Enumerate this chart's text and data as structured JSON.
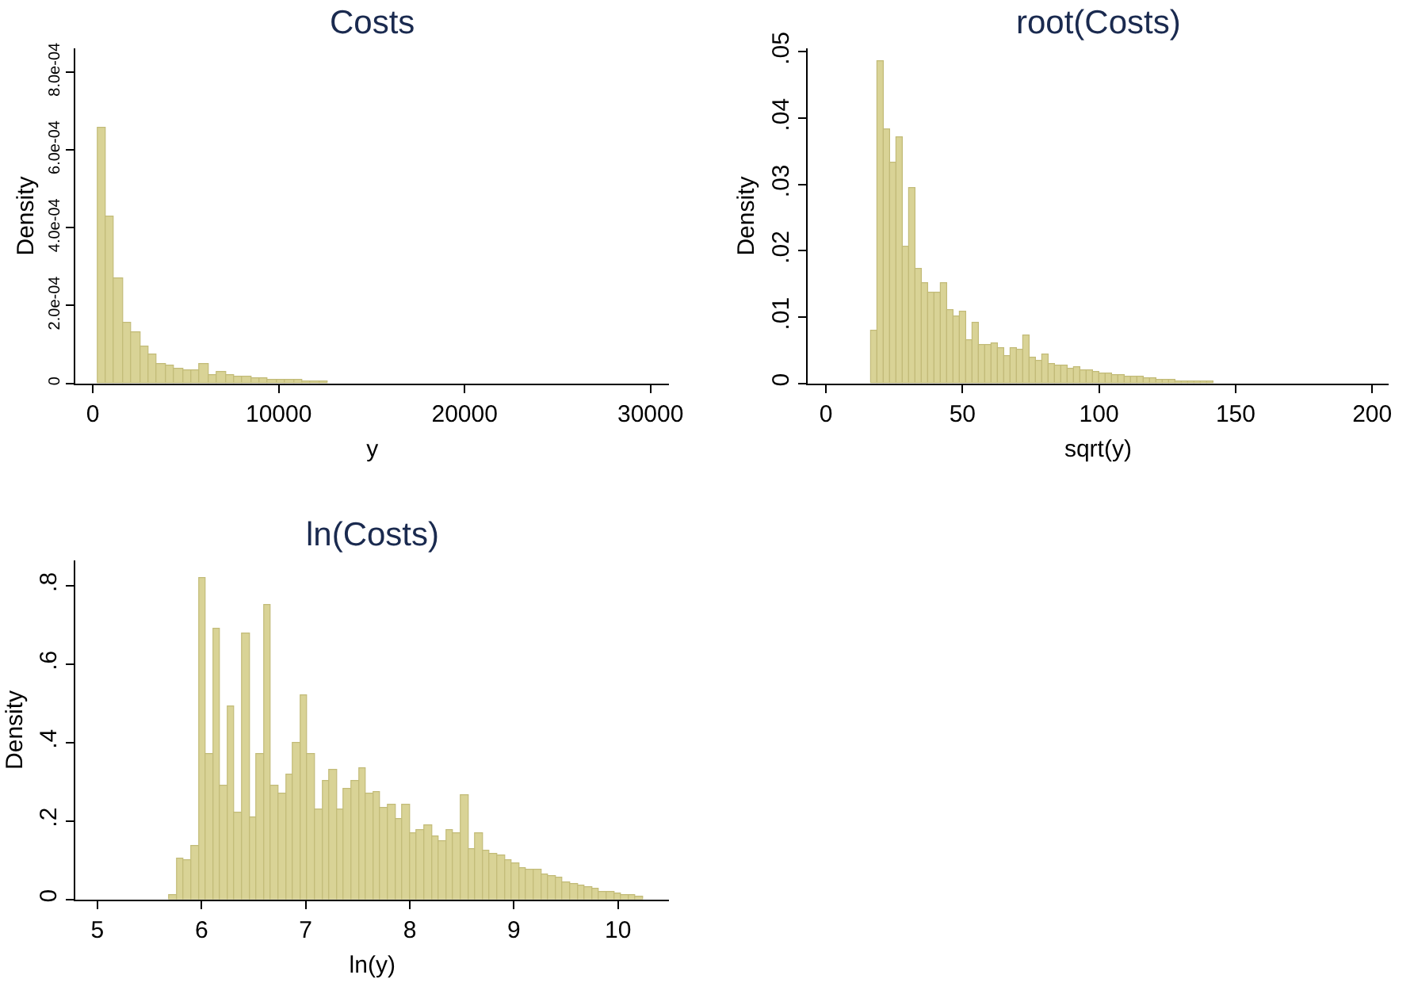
{
  "chart_data": [
    {
      "type": "histogram",
      "title": "Costs",
      "xlabel": "y",
      "ylabel": "Density",
      "color": "#d9d396",
      "bins": [
        230,
        690,
        1150,
        1610,
        2070,
        2530,
        2990,
        3450,
        3910,
        4370,
        4830,
        5290,
        5750,
        6210,
        6670,
        7130,
        7590,
        8050,
        8510,
        8970,
        9430,
        9890,
        10350,
        10810,
        11270,
        11730,
        12190,
        12650
      ],
      "values": [
        0.000655,
        0.00043,
        0.00027,
        0.000155,
        0.000133,
        9.3e-05,
        7.3e-05,
        5e-05,
        4.7e-05,
        3.8e-05,
        3.5e-05,
        3.3e-05,
        4.8e-05,
        2.2e-05,
        2.9e-05,
        2e-05,
        1.7e-05,
        1.7e-05,
        1.2e-05,
        1.2e-05,
        1e-05,
        1e-05,
        8e-06,
        1e-05,
        7e-06,
        6e-06,
        5e-06
      ],
      "xlim": [
        -930,
        31000
      ],
      "xticks": [
        0,
        10000,
        20000,
        30000
      ],
      "ylim": [
        0,
        0.00086
      ],
      "yticks": [
        0,
        {
          "value": 0.0002,
          "label": "2.0e-04"
        },
        {
          "value": 0.0004,
          "label": "4.0e-04"
        },
        {
          "value": 0.0006,
          "label": "6.0e-04"
        },
        {
          "value": 0.0008,
          "label": "8.0e-04"
        }
      ],
      "grid": false
    },
    {
      "type": "histogram",
      "title": "root(Costs)",
      "xlabel": "sqrt(y)",
      "ylabel": "Density",
      "color": "#d9d396",
      "bins": [
        16.3,
        18.63,
        20.96,
        23.29,
        25.62,
        27.95,
        30.28,
        32.61,
        34.94,
        37.27,
        39.6,
        41.93,
        44.26,
        46.59,
        48.92,
        51.25,
        53.58,
        55.91,
        58.24,
        60.57,
        62.9,
        65.23,
        67.56,
        69.89,
        72.22,
        74.55,
        76.88,
        79.21,
        81.54,
        83.87,
        86.2,
        88.53,
        90.86,
        93.19,
        95.52,
        97.85,
        100.18,
        102.51,
        104.84,
        107.17,
        109.5,
        111.83,
        114.16,
        116.49,
        118.82,
        121.15,
        123.48,
        125.81,
        128.14,
        130.47,
        132.8,
        135.13,
        137.46,
        139.79,
        142.12
      ],
      "values": [
        0.008,
        0.0487,
        0.0382,
        0.0332,
        0.0371,
        0.0205,
        0.0295,
        0.0173,
        0.015,
        0.0136,
        0.0137,
        0.0151,
        0.011,
        0.0102,
        0.0107,
        0.0065,
        0.0091,
        0.0058,
        0.0058,
        0.0061,
        0.0053,
        0.004,
        0.0052,
        0.005,
        0.0073,
        0.0038,
        0.0035,
        0.0043,
        0.003,
        0.0027,
        0.0027,
        0.0023,
        0.0024,
        0.002,
        0.0019,
        0.0017,
        0.0016,
        0.0016,
        0.0013,
        0.0012,
        0.0011,
        0.001,
        0.0009,
        0.0008,
        0.0007,
        0.0006,
        0.0005,
        0.0005,
        0.0004,
        0.0004,
        0.0003,
        0.0003,
        0.0003,
        0.0002
      ],
      "xlim": [
        -6.7,
        206
      ],
      "xticks": [
        0,
        50,
        100,
        150,
        200
      ],
      "ylim": [
        0,
        0.0505
      ],
      "yticks": [
        0,
        {
          "value": 0.01,
          "label": ".01"
        },
        {
          "value": 0.02,
          "label": ".02"
        },
        {
          "value": 0.03,
          "label": ".03"
        },
        {
          "value": 0.04,
          "label": ".04"
        },
        {
          "value": 0.05,
          "label": ".05"
        }
      ],
      "grid": false
    },
    {
      "type": "histogram",
      "title": "ln(Costs)",
      "xlabel": "ln(y)",
      "ylabel": "Density",
      "color": "#d9d396",
      "bins": [
        5.69,
        5.76,
        5.83,
        5.9,
        5.97,
        6.04,
        6.11,
        6.18,
        6.25,
        6.32,
        6.39,
        6.46,
        6.53,
        6.6,
        6.67,
        6.74,
        6.81,
        6.88,
        6.95,
        7.02,
        7.09,
        7.16,
        7.23,
        7.3,
        7.37,
        7.44,
        7.51,
        7.58,
        7.65,
        7.72,
        7.79,
        7.86,
        7.93,
        8.0,
        8.07,
        8.14,
        8.21,
        8.28,
        8.35,
        8.42,
        8.49,
        8.56,
        8.63,
        8.7,
        8.77,
        8.84,
        8.91,
        8.98,
        9.05,
        9.12,
        9.19,
        9.26,
        9.33,
        9.4,
        9.47,
        9.54,
        9.61,
        9.68,
        9.75,
        9.82,
        9.89,
        9.96,
        10.03,
        10.1,
        10.17,
        10.24
      ],
      "values": [
        0.01,
        0.105,
        0.1,
        0.135,
        0.82,
        0.37,
        0.69,
        0.29,
        0.49,
        0.22,
        0.68,
        0.21,
        0.37,
        0.75,
        0.29,
        0.27,
        0.32,
        0.4,
        0.52,
        0.37,
        0.23,
        0.3,
        0.33,
        0.23,
        0.28,
        0.3,
        0.335,
        0.27,
        0.275,
        0.235,
        0.24,
        0.205,
        0.24,
        0.17,
        0.175,
        0.19,
        0.16,
        0.15,
        0.175,
        0.17,
        0.265,
        0.13,
        0.17,
        0.125,
        0.115,
        0.11,
        0.1,
        0.09,
        0.08,
        0.075,
        0.075,
        0.065,
        0.06,
        0.055,
        0.045,
        0.04,
        0.035,
        0.03,
        0.025,
        0.02,
        0.018,
        0.015,
        0.012,
        0.01,
        0.008
      ],
      "xlim": [
        4.79,
        10.49
      ],
      "xticks": [
        5,
        6,
        7,
        8,
        9,
        10
      ],
      "ylim": [
        0,
        0.864
      ],
      "yticks": [
        0,
        {
          "value": 0.2,
          "label": ".2"
        },
        {
          "value": 0.4,
          "label": ".4"
        },
        {
          "value": 0.6,
          "label": ".6"
        },
        {
          "value": 0.8,
          "label": ".8"
        }
      ],
      "grid": false
    }
  ]
}
